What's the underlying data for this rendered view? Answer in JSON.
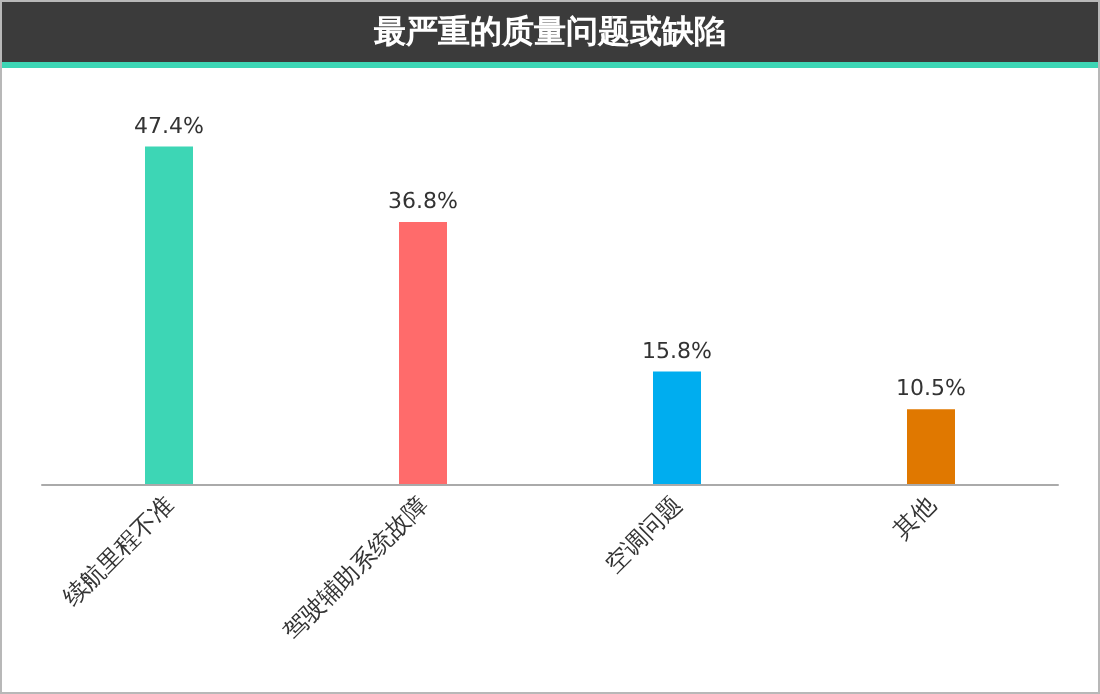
{
  "chart_data": {
    "type": "bar",
    "title": "最严重的质量问题或缺陷",
    "categories": [
      "续航里程不准",
      "驾驶辅助系统故障",
      "空调问题",
      "其他"
    ],
    "values": [
      47.4,
      36.8,
      15.8,
      10.5
    ],
    "colors": [
      "#3dd6b5",
      "#ff6b6b",
      "#00adef",
      "#e07800"
    ],
    "value_labels": [
      "47.4%",
      "36.8%",
      "15.8%",
      "10.5%"
    ]
  }
}
